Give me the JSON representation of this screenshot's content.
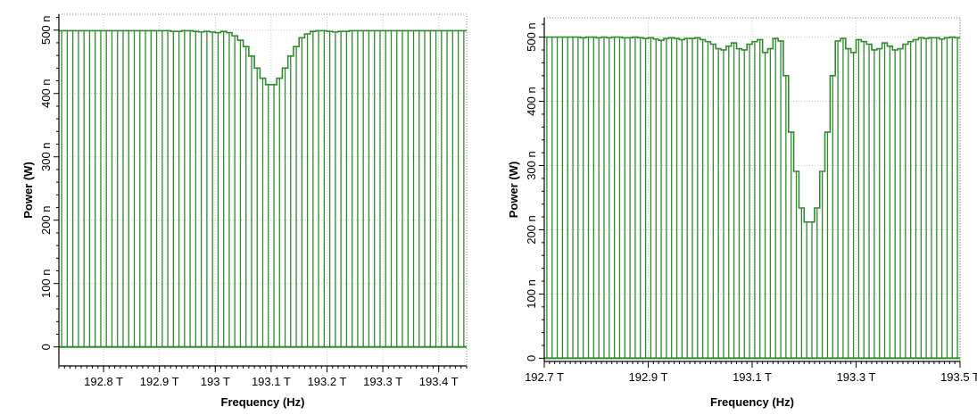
{
  "chart_data": [
    {
      "type": "bar",
      "title": "",
      "xlabel": "Frequency (Hz)",
      "ylabel": "Power (W)",
      "xlim": [
        192.72,
        193.45
      ],
      "ylim": [
        -30,
        525
      ],
      "grid": true,
      "color": "#2e8b2e",
      "x_ticks": [
        192.8,
        192.9,
        193.0,
        193.1,
        193.2,
        193.3,
        193.4
      ],
      "x_tick_labels": [
        "192.8 T",
        "192.9 T",
        "193 T",
        "193.1 T",
        "193.2 T",
        "193.3 T",
        "193.4 T"
      ],
      "y_ticks": [
        0,
        100,
        200,
        300,
        400,
        500
      ],
      "y_tick_labels": [
        "0",
        "100 n",
        "200 n",
        "300 n",
        "400 n",
        "500 n"
      ],
      "x": [
        192.725,
        192.735,
        192.745,
        192.755,
        192.765,
        192.775,
        192.785,
        192.795,
        192.805,
        192.815,
        192.825,
        192.835,
        192.845,
        192.855,
        192.865,
        192.875,
        192.885,
        192.895,
        192.905,
        192.915,
        192.925,
        192.935,
        192.945,
        192.955,
        192.965,
        192.975,
        192.985,
        192.995,
        193.005,
        193.015,
        193.025,
        193.035,
        193.045,
        193.055,
        193.065,
        193.075,
        193.085,
        193.095,
        193.105,
        193.115,
        193.125,
        193.135,
        193.145,
        193.155,
        193.165,
        193.175,
        193.185,
        193.195,
        193.205,
        193.215,
        193.225,
        193.235,
        193.245,
        193.255,
        193.265,
        193.275,
        193.285,
        193.295,
        193.305,
        193.315,
        193.325,
        193.335,
        193.345,
        193.355,
        193.365,
        193.375,
        193.385,
        193.395,
        193.405,
        193.415,
        193.425,
        193.435,
        193.445
      ],
      "values": [
        499,
        499,
        499,
        499,
        499,
        499,
        499,
        499,
        499,
        499,
        499,
        499,
        499,
        499,
        499,
        499,
        499,
        499,
        499,
        499,
        498,
        498,
        499,
        499,
        498,
        497,
        498,
        497,
        496,
        498,
        496,
        491,
        484,
        474,
        459,
        440,
        424,
        414,
        414,
        424,
        440,
        459,
        474,
        488,
        494,
        498,
        499,
        499,
        498,
        497,
        498,
        498,
        499,
        499,
        499,
        499,
        499,
        499,
        499,
        499,
        499,
        499,
        499,
        499,
        499,
        499,
        499,
        499,
        499,
        499,
        499,
        499,
        499
      ]
    },
    {
      "type": "bar",
      "title": "",
      "xlabel": "Frequency (Hz)",
      "ylabel": "Power (W)",
      "xlim": [
        192.7,
        193.5
      ],
      "ylim": [
        -5,
        530
      ],
      "grid": true,
      "color": "#2e8b2e",
      "x_ticks": [
        192.7,
        192.9,
        193.1,
        193.3,
        193.5
      ],
      "x_tick_labels": [
        "192.7 T",
        "192.9 T",
        "193.1 T",
        "193.3 T",
        "193.5 T"
      ],
      "y_ticks": [
        0,
        100,
        200,
        300,
        400,
        500
      ],
      "y_tick_labels": [
        "0",
        "100 n",
        "200 n",
        "300 n",
        "400 n",
        "500 n"
      ],
      "x": [
        192.705,
        192.715,
        192.725,
        192.735,
        192.745,
        192.755,
        192.765,
        192.775,
        192.785,
        192.795,
        192.805,
        192.815,
        192.825,
        192.835,
        192.845,
        192.855,
        192.865,
        192.875,
        192.885,
        192.895,
        192.905,
        192.915,
        192.925,
        192.935,
        192.945,
        192.955,
        192.965,
        192.975,
        192.985,
        192.995,
        193.005,
        193.015,
        193.025,
        193.035,
        193.045,
        193.055,
        193.065,
        193.075,
        193.085,
        193.095,
        193.105,
        193.115,
        193.125,
        193.135,
        193.145,
        193.155,
        193.165,
        193.175,
        193.185,
        193.195,
        193.205,
        193.215,
        193.225,
        193.235,
        193.245,
        193.255,
        193.265,
        193.275,
        193.285,
        193.295,
        193.305,
        193.315,
        193.325,
        193.335,
        193.345,
        193.355,
        193.365,
        193.375,
        193.385,
        193.395,
        193.405,
        193.415,
        193.425,
        193.435,
        193.445,
        193.455,
        193.465,
        193.475,
        193.485,
        193.495
      ],
      "values": [
        500,
        500,
        500,
        500,
        500,
        500,
        500,
        499,
        500,
        500,
        499,
        500,
        499,
        500,
        500,
        499,
        499,
        500,
        499,
        498,
        499,
        497,
        495,
        498,
        499,
        498,
        496,
        498,
        498,
        499,
        496,
        493,
        489,
        482,
        480,
        486,
        491,
        482,
        480,
        489,
        493,
        496,
        476,
        482,
        498,
        494,
        440,
        352,
        291,
        234,
        212,
        212,
        234,
        291,
        352,
        440,
        494,
        498,
        482,
        476,
        496,
        493,
        489,
        480,
        482,
        491,
        486,
        480,
        482,
        489,
        493,
        496,
        499,
        498,
        499,
        499,
        497,
        499,
        500,
        499
      ]
    }
  ]
}
